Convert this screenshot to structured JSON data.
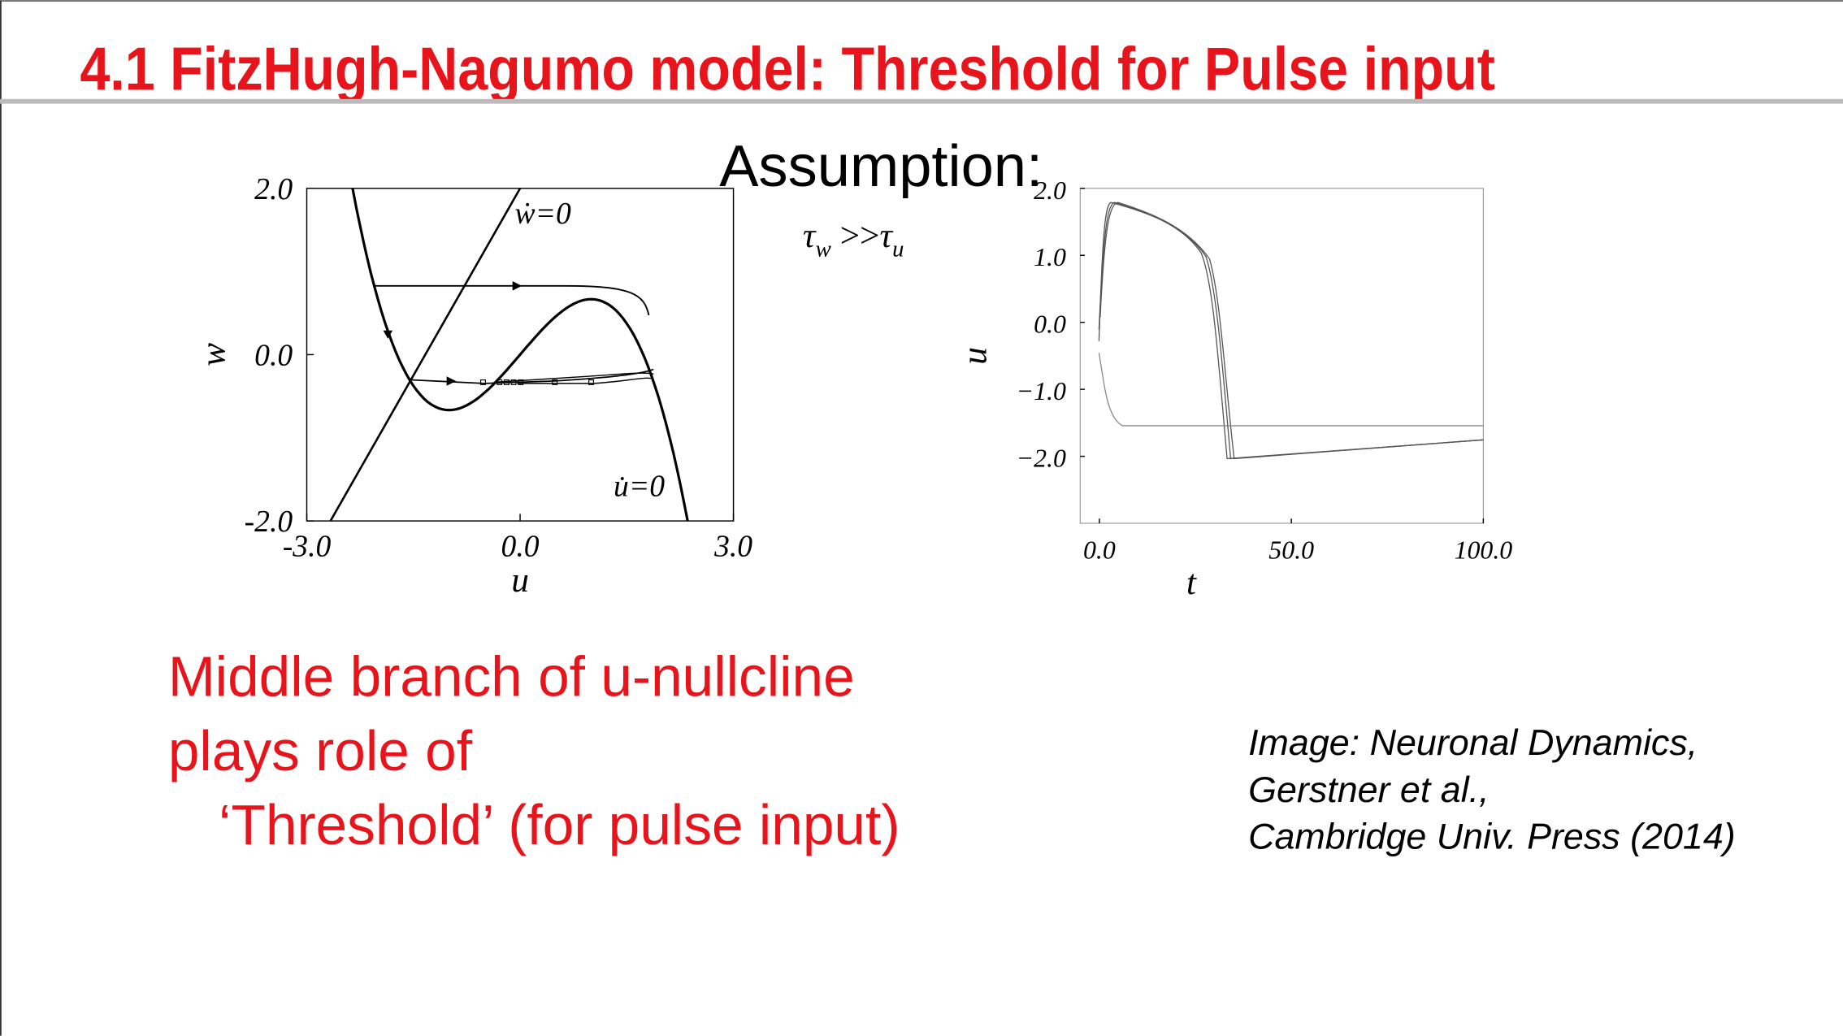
{
  "header": {
    "title": "4.1 FitzHugh-Nagumo model: Threshold for Pulse input"
  },
  "assumption": {
    "label": "Assumption:",
    "formula": {
      "left": "τ",
      "left_sub": "w",
      "relation": " >>",
      "right": "τ",
      "right_sub": "u"
    }
  },
  "body": {
    "lines": [
      "Middle branch of u-nullcline",
      "plays role of",
      "‘Threshold’ (for pulse input)"
    ]
  },
  "caption": {
    "lines": [
      "Image: Neuronal Dynamics,",
      "Gerstner et al.,",
      " Cambridge Univ. Press (2014)"
    ]
  },
  "chart_data": [
    {
      "type": "line",
      "x_label": "u",
      "y_label": "w",
      "xlim": [
        -3,
        3
      ],
      "ylim": [
        -2,
        2
      ],
      "xticks": [
        {
          "value": -3,
          "label": "-3.0"
        },
        {
          "value": 0,
          "label": "0.0"
        },
        {
          "value": 3,
          "label": "3.0"
        }
      ],
      "yticks": [
        {
          "value": 2,
          "label": "2.0"
        },
        {
          "value": 0,
          "label": "0.0"
        },
        {
          "value": -2,
          "label": "-2.0"
        }
      ],
      "annotations": [
        "ẇ=0",
        "u̇=0"
      ]
    },
    {
      "type": "line",
      "x_label": "t",
      "y_label": "u",
      "xlim": [
        -5,
        100
      ],
      "ylim": [
        -3,
        2
      ],
      "xticks": [
        {
          "value": 0,
          "label": "0.0"
        },
        {
          "value": 50,
          "label": "50.0"
        },
        {
          "value": 100,
          "label": "100.0"
        }
      ],
      "yticks": [
        {
          "value": 2,
          "label": "2.0"
        },
        {
          "value": 1,
          "label": "1.0"
        },
        {
          "value": 0,
          "label": "0.0"
        },
        {
          "value": -1,
          "label": "−1.0"
        },
        {
          "value": -2,
          "label": "−2.0"
        }
      ]
    }
  ]
}
